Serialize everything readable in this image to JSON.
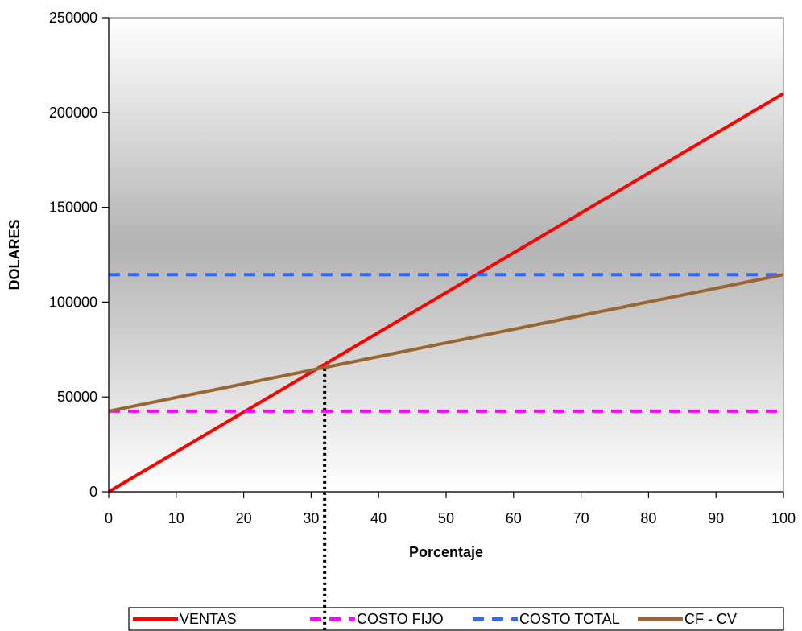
{
  "chart_data": {
    "type": "line",
    "xlabel": "Porcentaje",
    "ylabel": "DOLARES",
    "xlim": [
      0,
      100
    ],
    "ylim": [
      0,
      250000
    ],
    "x_ticks": [
      "0",
      "10",
      "20",
      "30",
      "40",
      "50",
      "60",
      "70",
      "80",
      "90",
      "100"
    ],
    "y_ticks": [
      "0",
      "50000",
      "100000",
      "150000",
      "200000",
      "250000"
    ],
    "grid": false,
    "legend_position": "bottom",
    "background": "vertical gradient, white at top and bottom, grey in the middle",
    "series": [
      {
        "name": "VENTAS",
        "color": "#ff0000",
        "style": "solid",
        "x": [
          0,
          100
        ],
        "y": [
          0,
          210000
        ]
      },
      {
        "name": "COSTO FIJO",
        "color": "#ff00ff",
        "style": "dashed",
        "x": [
          0,
          100
        ],
        "y": [
          42500,
          42500
        ]
      },
      {
        "name": "COSTO TOTAL",
        "color": "#3366ff",
        "style": "dashed",
        "x": [
          0,
          100
        ],
        "y": [
          114500,
          114500
        ]
      },
      {
        "name": "CF - CV",
        "color": "#996633",
        "style": "solid",
        "x": [
          0,
          100
        ],
        "y": [
          42500,
          114500
        ]
      }
    ],
    "annotations": [
      {
        "type": "vertical-dotted-line",
        "x": 32,
        "from_y": 65000,
        "color": "#000000",
        "description": "break-even marker"
      }
    ]
  }
}
